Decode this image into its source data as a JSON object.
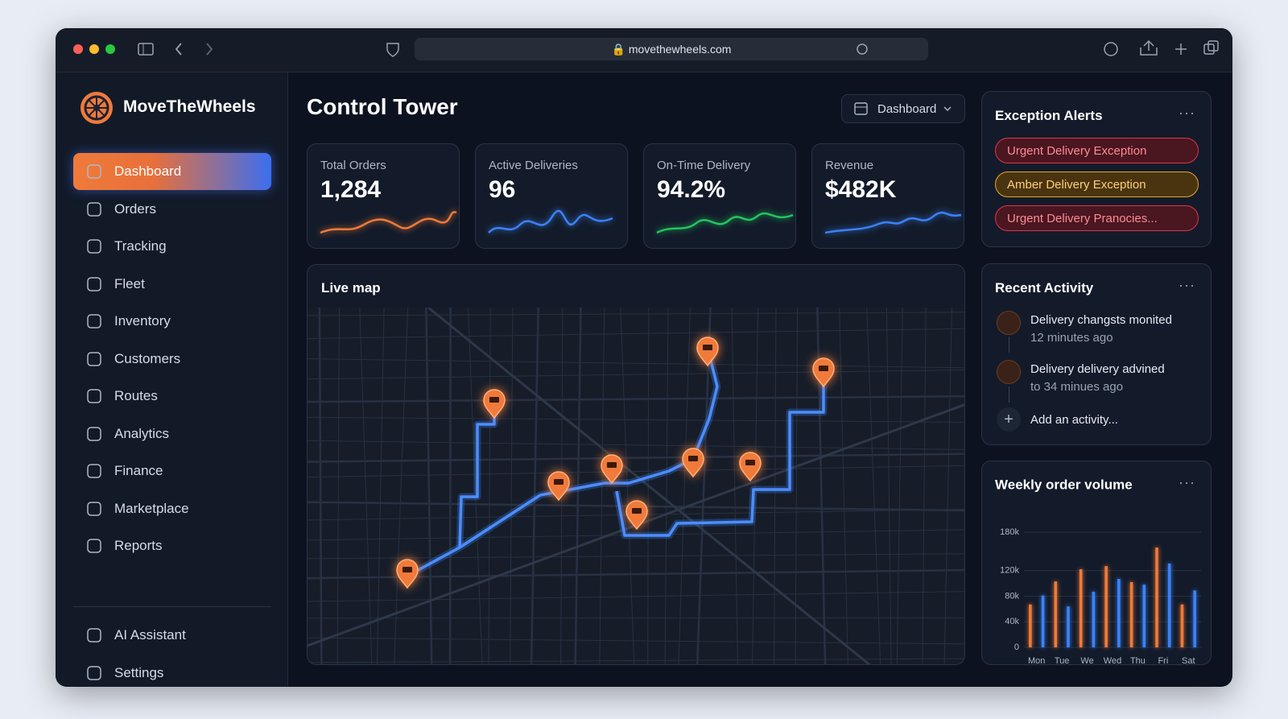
{
  "browser": {
    "url": "movethewheels.com"
  },
  "sidebar": {
    "brand": "MoveTheWheels",
    "nav": [
      "Dashboard",
      "Orders",
      "Tracking",
      "Fleet",
      "Inventory",
      "Customers",
      "Routes",
      "Analytics",
      "Finance",
      "Marketplace",
      "Reports"
    ],
    "bottom": [
      "AI Assistant",
      "Settings"
    ]
  },
  "header": {
    "title": "Control Tower",
    "dropdown": "Dashboard"
  },
  "kpis": [
    {
      "label": "Total Orders",
      "value": "1,284"
    },
    {
      "label": "Active Deliveries",
      "value": "96"
    },
    {
      "label": "On-Time Delivery",
      "value": "94.2%"
    },
    {
      "label": "Revenue",
      "value": "$482K"
    }
  ],
  "map": {
    "title": "Live map"
  },
  "alerts": {
    "title": "Exception Alerts",
    "items": [
      "Urgent Delivery Exception",
      "Amber Delivery Exception",
      "Urgent Delivery Pranocies..."
    ]
  },
  "activity": {
    "title": "Recent Activity",
    "items": [
      {
        "text": "Delivery changsts monited",
        "time": "12 minutes ago"
      },
      {
        "text": "Delivery delivery advined",
        "time": "to 34 minues ago"
      }
    ],
    "add": "Add an activity..."
  },
  "chart_data": {
    "type": "bar",
    "title": "Weekly order volume",
    "categories": [
      "Mon",
      "Tue",
      "We",
      "Wed",
      "Thu",
      "Fri",
      "Sat"
    ],
    "series": [
      {
        "color": "#f07a3a",
        "values": [
          67000,
          103000,
          122000,
          127000,
          102000,
          156000,
          67000
        ]
      },
      {
        "color": "#3b82f6",
        "values": [
          81000,
          64000,
          87000,
          107000,
          98000,
          131000,
          89000
        ]
      }
    ],
    "ylim": [
      0,
      180000
    ],
    "yticks": [
      0,
      {
        "value": 40000,
        "label": "40k"
      },
      {
        "value": 80000,
        "label": "80k"
      },
      {
        "value": 120000,
        "label": "120k"
      },
      {
        "value": 180000,
        "label": "180k"
      }
    ],
    "grid": true
  }
}
